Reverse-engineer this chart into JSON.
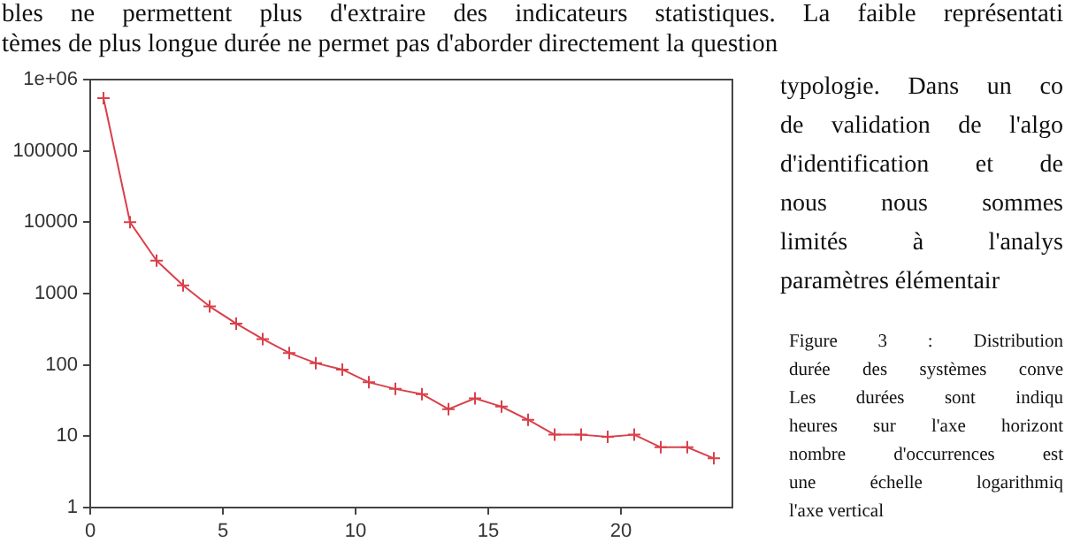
{
  "chart_data": {
    "type": "line",
    "x": [
      0.5,
      1.5,
      2.5,
      3.5,
      4.5,
      5.5,
      6.5,
      7.5,
      8.5,
      9.5,
      10.5,
      11.5,
      12.5,
      13.5,
      14.5,
      15.5,
      16.5,
      17.5,
      18.5,
      19.5,
      20.5,
      21.5,
      22.5,
      23.5
    ],
    "series": [
      {
        "color": "#d9404a",
        "values": [
          550000,
          10000,
          2900,
          1300,
          660,
          380,
          230,
          147,
          106,
          86,
          57,
          46,
          39,
          24,
          34,
          26,
          17,
          10.5,
          10.5,
          9.8,
          10.5,
          7,
          7,
          4.9
        ]
      }
    ],
    "log": "y",
    "xlim": [
      0,
      24.2
    ],
    "ylim": [
      1,
      1000000
    ],
    "xticks": [
      0,
      5,
      10,
      15,
      20
    ],
    "yticks": [
      1,
      10,
      100,
      1000,
      10000,
      100000,
      {
        "value": 1000000,
        "label": "1e+06"
      }
    ],
    "grid": false,
    "legend": false,
    "marker": "cross",
    "line_style": "solid",
    "annotations": [
      "bles ne permettent plus d'extraire des indicateurs statistiques. La faible représentati\ntèmes de plus longue durée ne permet pas d'aborder directement la question",
      "typologie. Dans un co\nde validation de l'algo\nd'identification et de\nnous nous sommes\nlimités à l'analys\nparamètres élémentair",
      "Figure 3 : Distribution\ndurée des systèmes conve\nLes durées sont indiqu\nheures sur l'axe horizont\nnombre d'occurrences est\nune échelle logarithmiq\nl'axe vertical"
    ]
  }
}
